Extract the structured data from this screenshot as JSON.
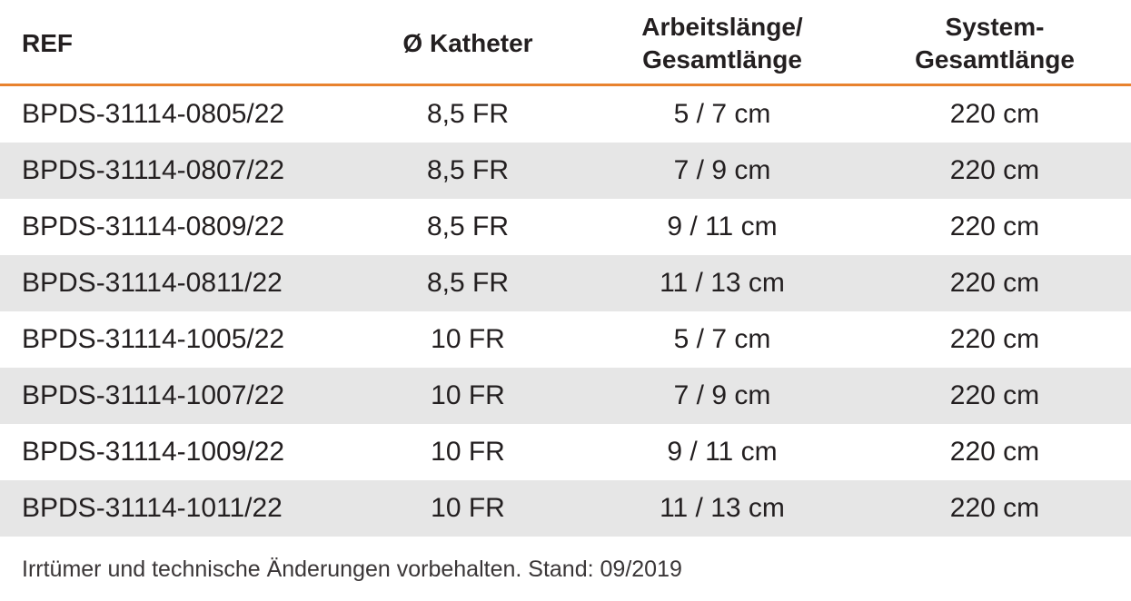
{
  "table": {
    "headers": {
      "ref": "REF",
      "katheter": "Ø Katheter",
      "arbeitslaenge_line1": "Arbeitslänge/",
      "arbeitslaenge_line2": "Gesamtlänge",
      "system_line1": "System-",
      "system_line2": "Gesamtlänge"
    },
    "rows": [
      {
        "ref": "BPDS-31114-0805/22",
        "katheter": "8,5 FR",
        "arbeitslaenge": "5 / 7 cm",
        "system": "220 cm"
      },
      {
        "ref": "BPDS-31114-0807/22",
        "katheter": "8,5 FR",
        "arbeitslaenge": "7 / 9 cm",
        "system": "220 cm"
      },
      {
        "ref": "BPDS-31114-0809/22",
        "katheter": "8,5 FR",
        "arbeitslaenge": "9 / 11 cm",
        "system": "220 cm"
      },
      {
        "ref": "BPDS-31114-0811/22",
        "katheter": "8,5 FR",
        "arbeitslaenge": "11 / 13 cm",
        "system": "220 cm"
      },
      {
        "ref": "BPDS-31114-1005/22",
        "katheter": "10 FR",
        "arbeitslaenge": "5 / 7 cm",
        "system": "220 cm"
      },
      {
        "ref": "BPDS-31114-1007/22",
        "katheter": "10 FR",
        "arbeitslaenge": "7 / 9 cm",
        "system": "220 cm"
      },
      {
        "ref": "BPDS-31114-1009/22",
        "katheter": "10 FR",
        "arbeitslaenge": "9 / 11 cm",
        "system": "220 cm"
      },
      {
        "ref": "BPDS-31114-1011/22",
        "katheter": "10 FR",
        "arbeitslaenge": "11 / 13 cm",
        "system": "220 cm"
      }
    ]
  },
  "footnote": "Irrtümer und technische Änderungen vorbehalten. Stand: 09/2019",
  "colors": {
    "accent_rule": "#e8822e",
    "alt_row_background": "#e6e6e6",
    "text": "#231f20"
  }
}
